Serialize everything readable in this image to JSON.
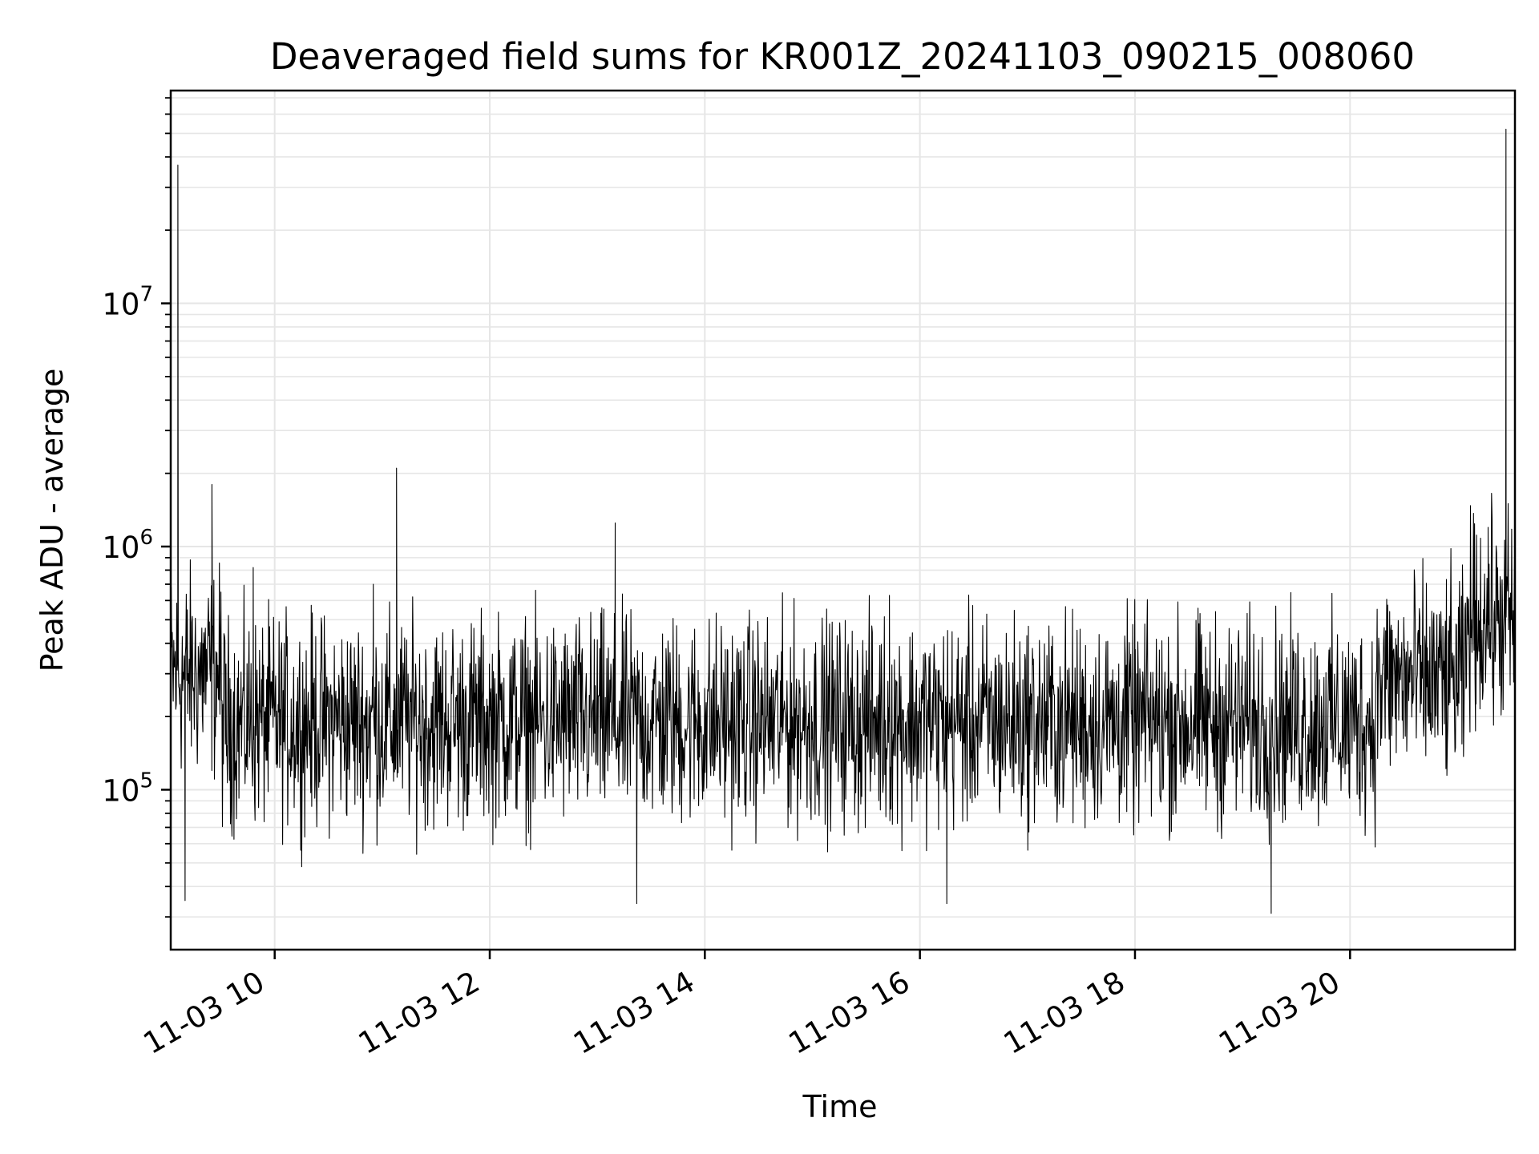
{
  "chart_data": {
    "type": "line",
    "title": "Deaveraged field sums for KR001Z_20241103_090215_008060",
    "xlabel": "Time",
    "ylabel": "Peak ADU - average",
    "yscale": "log",
    "ylim": [
      22000,
      75000000
    ],
    "xlim": [
      "2024-11-03 09:02",
      "2024-11-03 21:32"
    ],
    "grid": true,
    "line_color": "#000000",
    "grid_color": "#e6e6e6",
    "x_ticks": [
      {
        "value": "2024-11-03 10:00",
        "label": "11-03 10"
      },
      {
        "value": "2024-11-03 12:00",
        "label": "11-03 12"
      },
      {
        "value": "2024-11-03 14:00",
        "label": "11-03 14"
      },
      {
        "value": "2024-11-03 16:00",
        "label": "11-03 16"
      },
      {
        "value": "2024-11-03 18:00",
        "label": "11-03 18"
      },
      {
        "value": "2024-11-03 20:00",
        "label": "11-03 20"
      }
    ],
    "y_ticks": [
      {
        "value": 100000,
        "base": "10",
        "exp": "5"
      },
      {
        "value": 1000000,
        "base": "10",
        "exp": "6"
      },
      {
        "value": 10000000,
        "base": "10",
        "exp": "7"
      }
    ],
    "series": [
      {
        "points": [
          {
            "t": "2024-11-03 09:02",
            "y": 250000
          },
          {
            "t": "2024-11-03 09:06",
            "y": 37000000
          },
          {
            "t": "2024-11-03 09:10",
            "y": 35000
          },
          {
            "t": "2024-11-03 09:20",
            "y": 400000
          },
          {
            "t": "2024-11-03 09:25",
            "y": 1800000
          },
          {
            "t": "2024-11-03 09:30",
            "y": 650000
          },
          {
            "t": "2024-11-03 09:45",
            "y": 220000
          },
          {
            "t": "2024-11-03 09:48",
            "y": 820000
          },
          {
            "t": "2024-11-03 10:00",
            "y": 200000
          },
          {
            "t": "2024-11-03 10:30",
            "y": 180000
          },
          {
            "t": "2024-11-03 10:55",
            "y": 700000
          },
          {
            "t": "2024-11-03 11:08",
            "y": 2100000
          },
          {
            "t": "2024-11-03 11:30",
            "y": 180000
          },
          {
            "t": "2024-11-03 12:00",
            "y": 200000
          },
          {
            "t": "2024-11-03 12:40",
            "y": 210000
          },
          {
            "t": "2024-11-03 13:10",
            "y": 1250000
          },
          {
            "t": "2024-11-03 13:22",
            "y": 34000
          },
          {
            "t": "2024-11-03 14:00",
            "y": 200000
          },
          {
            "t": "2024-11-03 15:00",
            "y": 190000
          },
          {
            "t": "2024-11-03 15:43",
            "y": 630000
          },
          {
            "t": "2024-11-03 16:15",
            "y": 34000
          },
          {
            "t": "2024-11-03 17:00",
            "y": 200000
          },
          {
            "t": "2024-11-03 18:00",
            "y": 190000
          },
          {
            "t": "2024-11-03 19:00",
            "y": 180000
          },
          {
            "t": "2024-11-03 19:16",
            "y": 31000
          },
          {
            "t": "2024-11-03 20:00",
            "y": 200000
          },
          {
            "t": "2024-11-03 20:50",
            "y": 350000
          },
          {
            "t": "2024-11-03 21:10",
            "y": 600000
          },
          {
            "t": "2024-11-03 21:17",
            "y": 1200000
          },
          {
            "t": "2024-11-03 21:27",
            "y": 52000000
          },
          {
            "t": "2024-11-03 21:30",
            "y": 500000
          }
        ]
      }
    ]
  }
}
